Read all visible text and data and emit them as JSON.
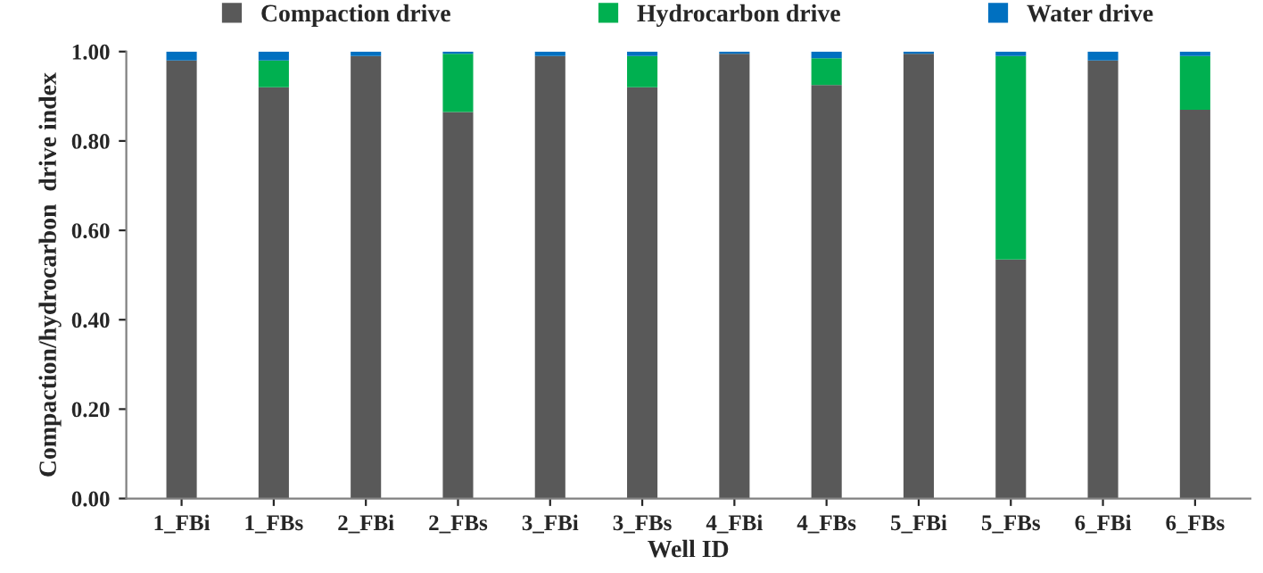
{
  "chart_data": {
    "type": "bar",
    "stacked": true,
    "xlabel": "Well ID",
    "ylabel": "Compaction/hydrocarbon  drive index",
    "categories": [
      "1_FBi",
      "1_FBs",
      "2_FBi",
      "2_FBs",
      "3_FBi",
      "3_FBs",
      "4_FBi",
      "4_FBs",
      "5_FBi",
      "5_FBs",
      "6_FBi",
      "6_FBs"
    ],
    "series": [
      {
        "name": "Compaction drive",
        "color": "#595959",
        "values": [
          0.98,
          0.92,
          0.99,
          0.865,
          0.99,
          0.92,
          0.995,
          0.925,
          0.995,
          0.535,
          0.98,
          0.87
        ]
      },
      {
        "name": "Hydrocarbon drive",
        "color": "#00b050",
        "values": [
          0,
          0.06,
          0,
          0.13,
          0,
          0.07,
          0,
          0.06,
          0,
          0.455,
          0,
          0.12
        ]
      },
      {
        "name": "Water drive",
        "color": "#0070c0",
        "values": [
          0.02,
          0.02,
          0.01,
          0.005,
          0.01,
          0.01,
          0.005,
          0.015,
          0.005,
          0.01,
          0.02,
          0.01
        ]
      }
    ],
    "ylim": [
      0,
      1.0
    ],
    "yticks": [
      {
        "value": 0,
        "label": "0.00"
      },
      {
        "value": 0.2,
        "label": "0.20"
      },
      {
        "value": 0.4,
        "label": "0.40"
      },
      {
        "value": 0.6,
        "label": "0.60"
      },
      {
        "value": 0.8,
        "label": "0.80"
      },
      {
        "value": 1.0,
        "label": "1.00"
      }
    ],
    "grid": false,
    "legend": "top"
  }
}
